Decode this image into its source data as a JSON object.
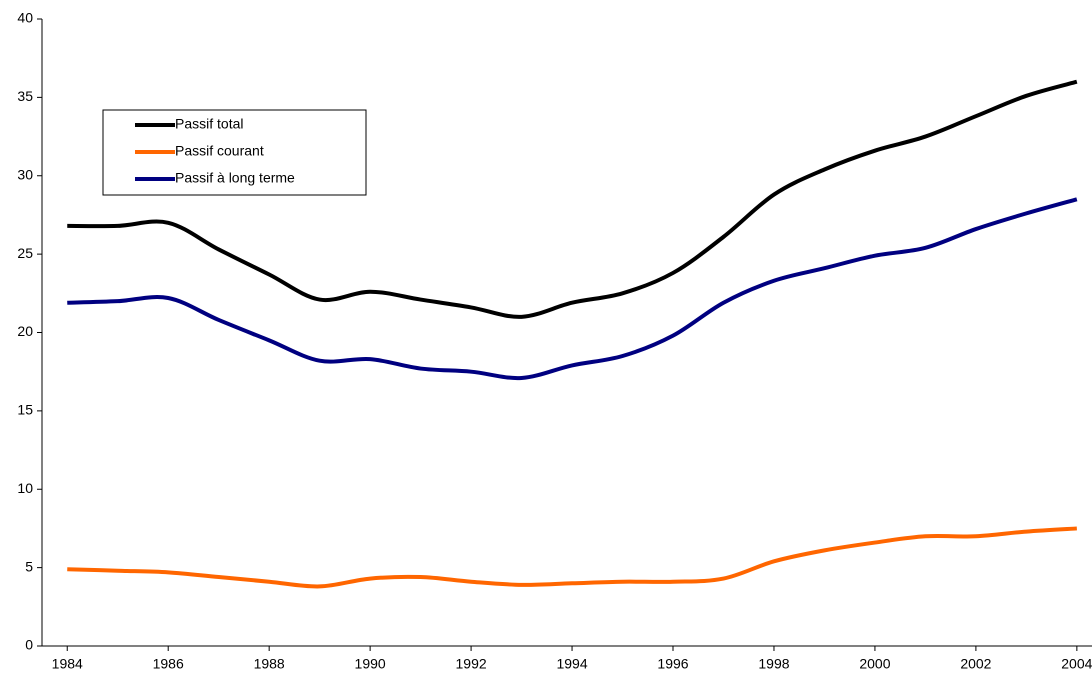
{
  "chart_data": {
    "type": "line",
    "x": [
      1984,
      1985,
      1986,
      1987,
      1988,
      1989,
      1990,
      1991,
      1992,
      1993,
      1994,
      1995,
      1996,
      1997,
      1998,
      1999,
      2000,
      2001,
      2002,
      2003,
      2004
    ],
    "series": [
      {
        "name": "Passif total",
        "color": "#000000",
        "values": [
          26.8,
          26.8,
          27.0,
          25.3,
          23.7,
          22.1,
          22.6,
          22.1,
          21.6,
          21.0,
          21.9,
          22.5,
          23.8,
          26.1,
          28.8,
          30.4,
          31.6,
          32.5,
          33.8,
          35.1,
          36.0
        ]
      },
      {
        "name": "Passif courant",
        "color": "#ff6600",
        "values": [
          4.9,
          4.8,
          4.7,
          4.4,
          4.1,
          3.8,
          4.3,
          4.4,
          4.1,
          3.9,
          4.0,
          4.1,
          4.1,
          4.3,
          5.4,
          6.1,
          6.6,
          7.0,
          7.0,
          7.3,
          7.5
        ]
      },
      {
        "name": "Passif à long terme",
        "color": "#000080",
        "values": [
          21.9,
          22.0,
          22.2,
          20.8,
          19.5,
          18.2,
          18.3,
          17.7,
          17.5,
          17.1,
          17.9,
          18.5,
          19.8,
          21.9,
          23.3,
          24.1,
          24.9,
          25.4,
          26.6,
          27.6,
          28.5
        ]
      }
    ],
    "xlim": [
      1983.5,
      2004.3
    ],
    "xticks": [
      1984,
      1986,
      1988,
      1990,
      1992,
      1994,
      1996,
      1998,
      2000,
      2002,
      2004
    ],
    "ylim": [
      0,
      40
    ],
    "yticks": [
      0,
      5,
      10,
      15,
      20,
      25,
      30,
      35,
      40
    ],
    "grid": false,
    "legend": "upper-left"
  }
}
